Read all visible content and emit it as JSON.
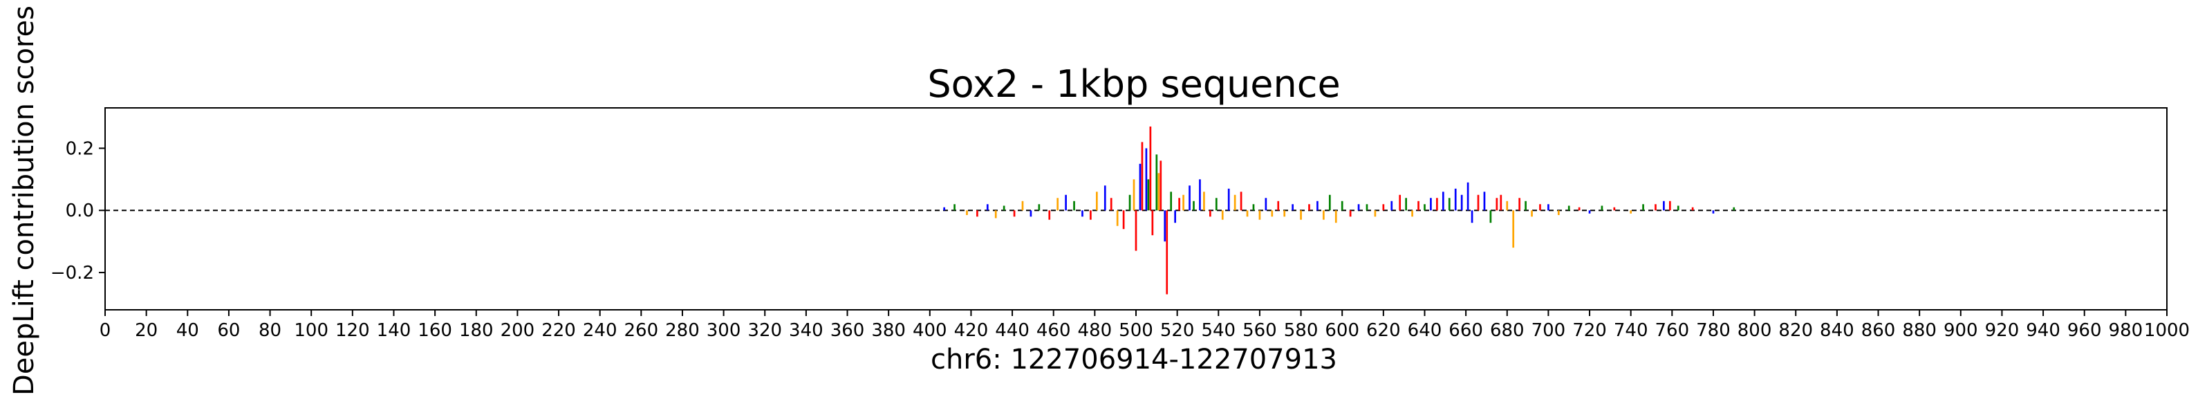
{
  "chart_data": {
    "type": "bar",
    "title": "Sox2 - 1kbp sequence",
    "xlabel": "chr6: 122706914-122707913",
    "ylabel": "DeepLift contribution scores",
    "xlim": [
      0,
      1000
    ],
    "ylim": [
      -0.32,
      0.33
    ],
    "x_ticks": [
      0,
      20,
      40,
      60,
      80,
      100,
      120,
      140,
      160,
      180,
      200,
      220,
      240,
      260,
      280,
      300,
      320,
      340,
      360,
      380,
      400,
      420,
      440,
      460,
      480,
      500,
      520,
      540,
      560,
      580,
      600,
      620,
      640,
      660,
      680,
      700,
      720,
      740,
      760,
      780,
      800,
      820,
      840,
      860,
      880,
      900,
      920,
      940,
      960,
      980,
      1000
    ],
    "x_tick_labels": [
      "0",
      "20",
      "40",
      "60",
      "80",
      "100",
      "120",
      "140",
      "160",
      "180",
      "200",
      "220",
      "240",
      "260",
      "280",
      "300",
      "320",
      "340",
      "360",
      "380",
      "400",
      "420",
      "440",
      "460",
      "480",
      "500",
      "520",
      "540",
      "560",
      "580",
      "600",
      "620",
      "640",
      "660",
      "680",
      "700",
      "720",
      "740",
      "760",
      "780",
      "800",
      "820",
      "840",
      "860",
      "880",
      "900",
      "920",
      "940",
      "960",
      "980",
      "1000"
    ],
    "y_ticks": [
      -0.2,
      0.0,
      0.2
    ],
    "y_tick_labels": [
      "−0.2",
      "0.0",
      "0.2"
    ],
    "grid": false,
    "legend": "none",
    "base_colors": {
      "A": "#008000",
      "C": "#0000ff",
      "G": "#ffa500",
      "T": "#ff0000"
    },
    "series": [
      {
        "x": 407,
        "base": "C",
        "value": 0.01
      },
      {
        "x": 412,
        "base": "A",
        "value": 0.02
      },
      {
        "x": 418,
        "base": "G",
        "value": -0.015
      },
      {
        "x": 423,
        "base": "T",
        "value": -0.02
      },
      {
        "x": 428,
        "base": "C",
        "value": 0.02
      },
      {
        "x": 432,
        "base": "G",
        "value": -0.025
      },
      {
        "x": 436,
        "base": "A",
        "value": 0.015
      },
      {
        "x": 441,
        "base": "T",
        "value": -0.02
      },
      {
        "x": 445,
        "base": "G",
        "value": 0.03
      },
      {
        "x": 449,
        "base": "C",
        "value": -0.02
      },
      {
        "x": 453,
        "base": "A",
        "value": 0.02
      },
      {
        "x": 458,
        "base": "T",
        "value": -0.03
      },
      {
        "x": 462,
        "base": "G",
        "value": 0.04
      },
      {
        "x": 466,
        "base": "C",
        "value": 0.05
      },
      {
        "x": 470,
        "base": "A",
        "value": 0.03
      },
      {
        "x": 474,
        "base": "C",
        "value": -0.02
      },
      {
        "x": 478,
        "base": "T",
        "value": -0.03
      },
      {
        "x": 481,
        "base": "G",
        "value": 0.06
      },
      {
        "x": 485,
        "base": "C",
        "value": 0.08
      },
      {
        "x": 488,
        "base": "T",
        "value": 0.04
      },
      {
        "x": 491,
        "base": "G",
        "value": -0.05
      },
      {
        "x": 494,
        "base": "T",
        "value": -0.06
      },
      {
        "x": 497,
        "base": "A",
        "value": 0.05
      },
      {
        "x": 499,
        "base": "G",
        "value": 0.1
      },
      {
        "x": 500,
        "base": "T",
        "value": -0.13
      },
      {
        "x": 502,
        "base": "C",
        "value": 0.15
      },
      {
        "x": 503,
        "base": "T",
        "value": 0.22
      },
      {
        "x": 505,
        "base": "C",
        "value": 0.2
      },
      {
        "x": 506,
        "base": "A",
        "value": 0.1
      },
      {
        "x": 507,
        "base": "T",
        "value": 0.27
      },
      {
        "x": 508,
        "base": "T",
        "value": -0.08
      },
      {
        "x": 510,
        "base": "A",
        "value": 0.18
      },
      {
        "x": 511,
        "base": "G",
        "value": 0.12
      },
      {
        "x": 512,
        "base": "T",
        "value": 0.16
      },
      {
        "x": 514,
        "base": "C",
        "value": -0.1
      },
      {
        "x": 515,
        "base": "T",
        "value": -0.27
      },
      {
        "x": 517,
        "base": "A",
        "value": 0.06
      },
      {
        "x": 519,
        "base": "C",
        "value": -0.04
      },
      {
        "x": 521,
        "base": "T",
        "value": 0.04
      },
      {
        "x": 523,
        "base": "G",
        "value": 0.05
      },
      {
        "x": 526,
        "base": "C",
        "value": 0.08
      },
      {
        "x": 528,
        "base": "A",
        "value": 0.03
      },
      {
        "x": 531,
        "base": "C",
        "value": 0.1
      },
      {
        "x": 533,
        "base": "G",
        "value": 0.06
      },
      {
        "x": 536,
        "base": "T",
        "value": -0.02
      },
      {
        "x": 539,
        "base": "A",
        "value": 0.04
      },
      {
        "x": 542,
        "base": "G",
        "value": -0.03
      },
      {
        "x": 545,
        "base": "C",
        "value": 0.07
      },
      {
        "x": 548,
        "base": "G",
        "value": 0.05
      },
      {
        "x": 551,
        "base": "T",
        "value": 0.06
      },
      {
        "x": 554,
        "base": "G",
        "value": -0.02
      },
      {
        "x": 557,
        "base": "A",
        "value": 0.02
      },
      {
        "x": 560,
        "base": "G",
        "value": -0.03
      },
      {
        "x": 563,
        "base": "C",
        "value": 0.04
      },
      {
        "x": 566,
        "base": "G",
        "value": -0.02
      },
      {
        "x": 569,
        "base": "T",
        "value": 0.03
      },
      {
        "x": 572,
        "base": "G",
        "value": -0.02
      },
      {
        "x": 576,
        "base": "C",
        "value": 0.02
      },
      {
        "x": 580,
        "base": "G",
        "value": -0.03
      },
      {
        "x": 584,
        "base": "T",
        "value": 0.02
      },
      {
        "x": 588,
        "base": "C",
        "value": 0.03
      },
      {
        "x": 591,
        "base": "G",
        "value": -0.03
      },
      {
        "x": 594,
        "base": "A",
        "value": 0.05
      },
      {
        "x": 597,
        "base": "G",
        "value": -0.04
      },
      {
        "x": 600,
        "base": "A",
        "value": 0.03
      },
      {
        "x": 604,
        "base": "T",
        "value": -0.02
      },
      {
        "x": 608,
        "base": "C",
        "value": 0.02
      },
      {
        "x": 612,
        "base": "A",
        "value": 0.02
      },
      {
        "x": 616,
        "base": "G",
        "value": -0.02
      },
      {
        "x": 620,
        "base": "T",
        "value": 0.02
      },
      {
        "x": 624,
        "base": "C",
        "value": 0.03
      },
      {
        "x": 628,
        "base": "T",
        "value": 0.05
      },
      {
        "x": 631,
        "base": "A",
        "value": 0.04
      },
      {
        "x": 634,
        "base": "G",
        "value": -0.02
      },
      {
        "x": 637,
        "base": "T",
        "value": 0.03
      },
      {
        "x": 640,
        "base": "A",
        "value": 0.02
      },
      {
        "x": 643,
        "base": "C",
        "value": 0.04
      },
      {
        "x": 646,
        "base": "T",
        "value": 0.04
      },
      {
        "x": 649,
        "base": "C",
        "value": 0.06
      },
      {
        "x": 652,
        "base": "A",
        "value": 0.04
      },
      {
        "x": 655,
        "base": "C",
        "value": 0.07
      },
      {
        "x": 658,
        "base": "C",
        "value": 0.05
      },
      {
        "x": 661,
        "base": "C",
        "value": 0.09
      },
      {
        "x": 663,
        "base": "C",
        "value": -0.04
      },
      {
        "x": 666,
        "base": "T",
        "value": 0.05
      },
      {
        "x": 669,
        "base": "C",
        "value": 0.06
      },
      {
        "x": 672,
        "base": "A",
        "value": -0.04
      },
      {
        "x": 675,
        "base": "T",
        "value": 0.04
      },
      {
        "x": 677,
        "base": "T",
        "value": 0.05
      },
      {
        "x": 680,
        "base": "G",
        "value": 0.03
      },
      {
        "x": 683,
        "base": "G",
        "value": -0.12
      },
      {
        "x": 686,
        "base": "T",
        "value": 0.04
      },
      {
        "x": 689,
        "base": "A",
        "value": 0.03
      },
      {
        "x": 692,
        "base": "G",
        "value": -0.02
      },
      {
        "x": 696,
        "base": "T",
        "value": 0.02
      },
      {
        "x": 700,
        "base": "C",
        "value": 0.02
      },
      {
        "x": 705,
        "base": "G",
        "value": -0.015
      },
      {
        "x": 710,
        "base": "A",
        "value": 0.015
      },
      {
        "x": 715,
        "base": "T",
        "value": 0.01
      },
      {
        "x": 720,
        "base": "C",
        "value": -0.01
      },
      {
        "x": 726,
        "base": "A",
        "value": 0.015
      },
      {
        "x": 732,
        "base": "T",
        "value": 0.01
      },
      {
        "x": 740,
        "base": "G",
        "value": -0.01
      },
      {
        "x": 746,
        "base": "A",
        "value": 0.02
      },
      {
        "x": 752,
        "base": "T",
        "value": 0.02
      },
      {
        "x": 756,
        "base": "C",
        "value": 0.03
      },
      {
        "x": 759,
        "base": "T",
        "value": 0.03
      },
      {
        "x": 763,
        "base": "A",
        "value": 0.015
      },
      {
        "x": 770,
        "base": "T",
        "value": 0.01
      },
      {
        "x": 780,
        "base": "C",
        "value": -0.01
      },
      {
        "x": 790,
        "base": "A",
        "value": 0.01
      }
    ]
  }
}
